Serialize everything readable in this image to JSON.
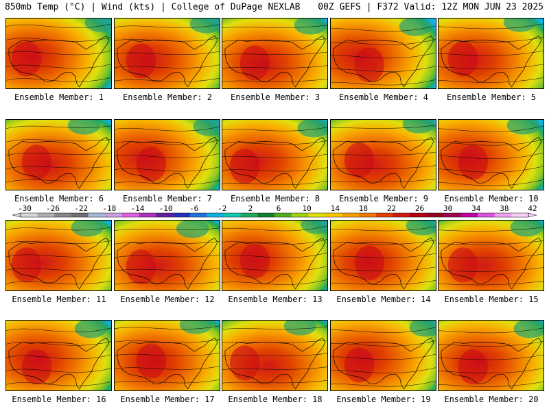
{
  "header": {
    "left_title": "850mb Temp (°C) | Wind (kts) | College of DuPage NEXLAB",
    "right_title": "00Z GEFS | F372 Valid: 12Z MON JUN 23 2025"
  },
  "members": [
    {
      "label": "Ensemble Member: 1"
    },
    {
      "label": "Ensemble Member: 2"
    },
    {
      "label": "Ensemble Member: 3"
    },
    {
      "label": "Ensemble Member: 4"
    },
    {
      "label": "Ensemble Member: 5"
    },
    {
      "label": "Ensemble Member: 6"
    },
    {
      "label": "Ensemble Member: 7"
    },
    {
      "label": "Ensemble Member: 8"
    },
    {
      "label": "Ensemble Member: 9"
    },
    {
      "label": "Ensemble Member: 10"
    },
    {
      "label": "Ensemble Member: 11"
    },
    {
      "label": "Ensemble Member: 12"
    },
    {
      "label": "Ensemble Member: 13"
    },
    {
      "label": "Ensemble Member: 14"
    },
    {
      "label": "Ensemble Member: 15"
    },
    {
      "label": "Ensemble Member: 16"
    },
    {
      "label": "Ensemble Member: 17"
    },
    {
      "label": "Ensemble Member: 18"
    },
    {
      "label": "Ensemble Member: 19"
    },
    {
      "label": "Ensemble Member: 20"
    }
  ],
  "colorbar": {
    "labels": [
      "-30",
      "-26",
      "-22",
      "-18",
      "-14",
      "-10",
      "-6",
      "-2",
      "2",
      "6",
      "10",
      "14",
      "18",
      "22",
      "26",
      "30",
      "34",
      "38",
      "42"
    ],
    "colors": [
      "#d8d8d8",
      "#b0b0b0",
      "#888888",
      "#707070",
      "#a8b8d8",
      "#c8a0e0",
      "#e060e0",
      "#b030c0",
      "#6020a0",
      "#2030c0",
      "#2070e0",
      "#10b0e0",
      "#10c8b0",
      "#20a860",
      "#108030",
      "#50b020",
      "#a0d010",
      "#e0e010",
      "#f8c800",
      "#f8a000",
      "#f07800",
      "#e04000",
      "#d01818",
      "#b00010",
      "#900020",
      "#a00050",
      "#c000a0",
      "#e050e0",
      "#f0a0f0",
      "#f8d0f8"
    ]
  }
}
